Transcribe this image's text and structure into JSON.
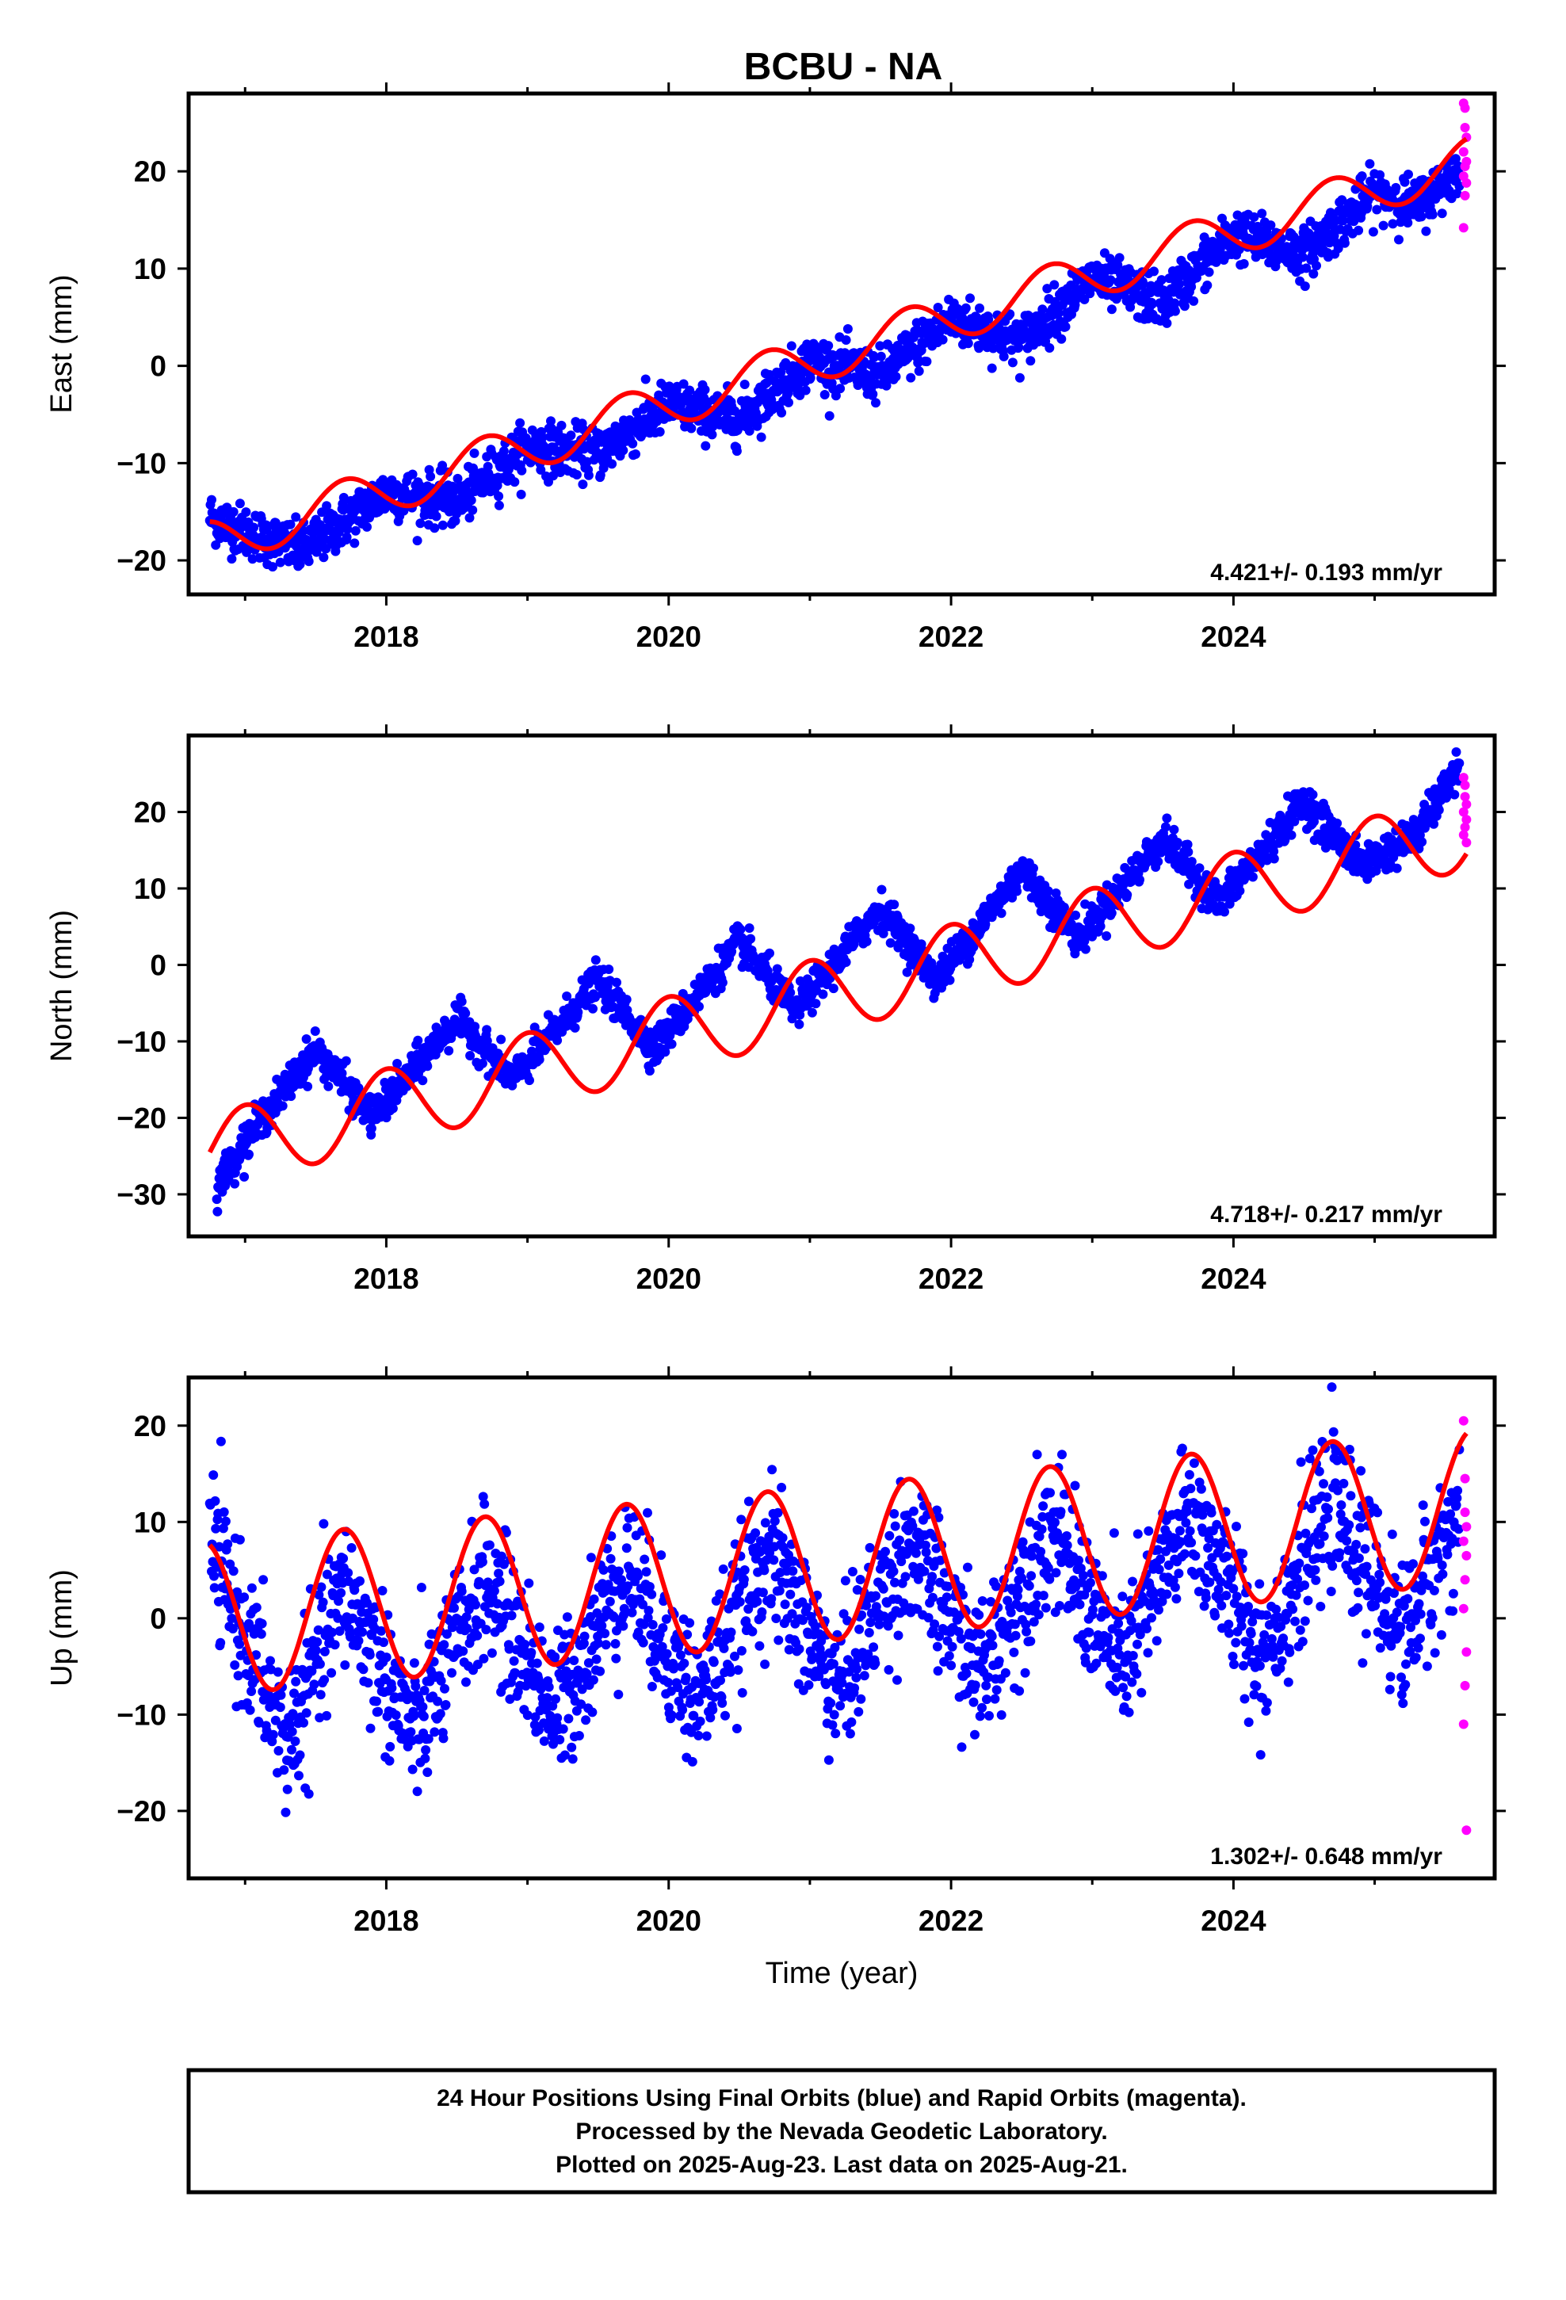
{
  "title": "BCBU - NA",
  "caption": [
    "24 Hour Positions Using Final Orbits (blue) and Rapid Orbits (magenta).",
    "Processed by the Nevada Geodetic Laboratory.",
    "Plotted on 2025-Aug-23. Last data on 2025-Aug-21."
  ],
  "colors": {
    "final": "#0000ff",
    "rapid": "#ff00ff",
    "fit": "#ff0000",
    "frame": "#000000"
  },
  "chart_data": [
    {
      "type": "scatter",
      "ylabel": "East (mm)",
      "xlabel": "",
      "xlim": [
        2016.6,
        2025.85
      ],
      "ylim": [
        -23.5,
        28
      ],
      "x_ticks": [
        2018,
        2020,
        2022,
        2024
      ],
      "y_ticks": [
        -20,
        -10,
        0,
        10,
        20
      ],
      "rate_label": "4.421+/- 0.193 mm/yr",
      "model": {
        "start": 2016.75,
        "end": 2025.65,
        "y0": -18.3,
        "trend": 4.421,
        "amplitude": 2.4,
        "phase_year": 2016.95
      },
      "final_trend": [
        [
          2016.75,
          -15.5
        ],
        [
          2017.0,
          -17.0
        ],
        [
          2017.4,
          -19.0
        ],
        [
          2018.0,
          -13.0
        ],
        [
          2018.5,
          -14.0
        ],
        [
          2019.0,
          -8.3
        ],
        [
          2019.5,
          -9.0
        ],
        [
          2020.0,
          -4.0
        ],
        [
          2020.5,
          -5.5
        ],
        [
          2021.0,
          0.5
        ],
        [
          2021.5,
          -1.0
        ],
        [
          2022.0,
          4.8
        ],
        [
          2022.5,
          2.5
        ],
        [
          2023.0,
          9.0
        ],
        [
          2023.5,
          6.5
        ],
        [
          2024.0,
          13.5
        ],
        [
          2024.5,
          11.5
        ],
        [
          2025.0,
          17.8
        ],
        [
          2025.3,
          16.5
        ],
        [
          2025.6,
          20.0
        ]
      ],
      "final_noise": 1.3,
      "rapid": [
        [
          2025.63,
          27.0
        ],
        [
          2025.64,
          26.5
        ],
        [
          2025.64,
          24.5
        ],
        [
          2025.65,
          23.5
        ],
        [
          2025.63,
          22.0
        ],
        [
          2025.65,
          21.0
        ],
        [
          2025.64,
          20.5
        ],
        [
          2025.63,
          19.5
        ],
        [
          2025.65,
          18.8
        ],
        [
          2025.64,
          17.5
        ],
        [
          2025.63,
          14.2
        ]
      ]
    },
    {
      "type": "scatter",
      "ylabel": "North (mm)",
      "xlabel": "",
      "xlim": [
        2016.6,
        2025.85
      ],
      "ylim": [
        -35.5,
        30
      ],
      "x_ticks": [
        2018,
        2020,
        2022,
        2024
      ],
      "y_ticks": [
        -30,
        -20,
        -10,
        0,
        10,
        20
      ],
      "rate_label": "4.718+/- 0.217 mm/yr",
      "model": {
        "start": 2016.75,
        "end": 2025.65,
        "y0": -24.5,
        "trend": 4.718,
        "amplitude": 5.0,
        "phase_year": 2017.25
      },
      "final_trend": [
        [
          2016.8,
          -29.0
        ],
        [
          2017.0,
          -23.0
        ],
        [
          2017.5,
          -11.0
        ],
        [
          2017.9,
          -20.0
        ],
        [
          2018.5,
          -7.0
        ],
        [
          2018.9,
          -15.0
        ],
        [
          2019.5,
          -2.0
        ],
        [
          2019.9,
          -11.0
        ],
        [
          2020.5,
          3.0
        ],
        [
          2020.9,
          -6.0
        ],
        [
          2021.5,
          7.5
        ],
        [
          2021.9,
          -2.0
        ],
        [
          2022.5,
          12.5
        ],
        [
          2022.9,
          3.5
        ],
        [
          2023.5,
          16.5
        ],
        [
          2023.9,
          8.0
        ],
        [
          2024.5,
          21.5
        ],
        [
          2024.9,
          13.0
        ],
        [
          2025.3,
          17.0
        ],
        [
          2025.6,
          26.0
        ]
      ],
      "final_noise": 1.2,
      "rapid": [
        [
          2025.63,
          24.5
        ],
        [
          2025.64,
          23.5
        ],
        [
          2025.64,
          22.0
        ],
        [
          2025.65,
          21.0
        ],
        [
          2025.63,
          20.0
        ],
        [
          2025.65,
          19.0
        ],
        [
          2025.64,
          18.0
        ],
        [
          2025.63,
          17.0
        ],
        [
          2025.65,
          16.0
        ]
      ]
    },
    {
      "type": "scatter",
      "ylabel": "Up (mm)",
      "xlabel": "Time (year)",
      "xlim": [
        2016.6,
        2025.85
      ],
      "ylim": [
        -27,
        25
      ],
      "x_ticks": [
        2018,
        2020,
        2022,
        2024
      ],
      "y_ticks": [
        -20,
        -10,
        0,
        10,
        20
      ],
      "rate_label": "1.302+/- 0.648 mm/yr",
      "model": {
        "start": 2016.75,
        "end": 2025.65,
        "y0": 0.0,
        "trend": 1.302,
        "amplitude": 8.0,
        "phase_year": 2016.95
      },
      "final_trend": [
        [
          2016.75,
          8.0
        ],
        [
          2017.0,
          -2.0
        ],
        [
          2017.3,
          -13.0
        ],
        [
          2017.7,
          3.0
        ],
        [
          2018.2,
          -12.0
        ],
        [
          2018.7,
          4.0
        ],
        [
          2019.2,
          -10.0
        ],
        [
          2019.7,
          5.5
        ],
        [
          2020.2,
          -9.0
        ],
        [
          2020.7,
          7.0
        ],
        [
          2021.2,
          -7.5
        ],
        [
          2021.7,
          8.0
        ],
        [
          2022.2,
          -6.0
        ],
        [
          2022.7,
          9.5
        ],
        [
          2023.2,
          -5.0
        ],
        [
          2023.7,
          11.0
        ],
        [
          2024.2,
          -4.0
        ],
        [
          2024.7,
          12.0
        ],
        [
          2025.2,
          -2.0
        ],
        [
          2025.6,
          11.5
        ]
      ],
      "final_noise": 3.8,
      "rapid": [
        [
          2025.63,
          20.5
        ],
        [
          2025.64,
          14.5
        ],
        [
          2025.64,
          11.0
        ],
        [
          2025.65,
          9.5
        ],
        [
          2025.63,
          8.0
        ],
        [
          2025.65,
          6.5
        ],
        [
          2025.64,
          4.0
        ],
        [
          2025.63,
          1.0
        ],
        [
          2025.65,
          -3.5
        ],
        [
          2025.64,
          -7.0
        ],
        [
          2025.63,
          -11.0
        ],
        [
          2025.65,
          -22.0
        ]
      ]
    }
  ]
}
